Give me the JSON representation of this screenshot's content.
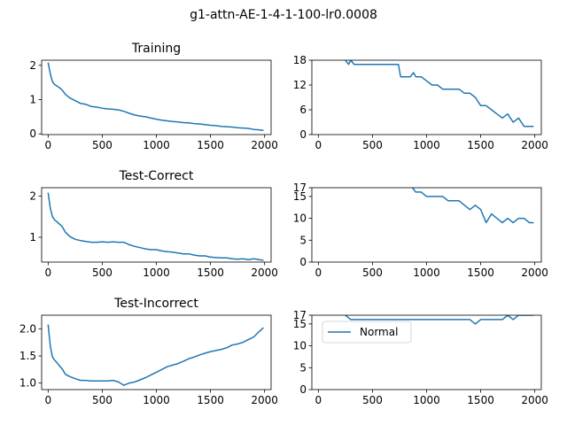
{
  "figure": {
    "title": "g1-attn-AE-1-4-1-100-lr0.0008"
  },
  "colors": {
    "series": "#1f77b4",
    "axis": "#000000",
    "background": "#ffffff"
  },
  "chart_data": [
    {
      "id": "training-loss",
      "type": "line",
      "title": "Training",
      "xlim": [
        -60,
        2060
      ],
      "ylim": [
        -0.02,
        2.15
      ],
      "xticks": [
        0,
        500,
        1000,
        1500,
        2000
      ],
      "xtick_labels": [
        "0",
        "500",
        "1000",
        "1500",
        "2000"
      ],
      "yticks": [
        0,
        1,
        2
      ],
      "ytick_labels": [
        "0",
        "1",
        "2"
      ],
      "series": [
        {
          "x": [
            0,
            20,
            40,
            60,
            80,
            100,
            130,
            160,
            200,
            250,
            300,
            350,
            400,
            450,
            500,
            550,
            600,
            650,
            700,
            750,
            800,
            850,
            900,
            950,
            1000,
            1050,
            1100,
            1150,
            1200,
            1250,
            1300,
            1350,
            1400,
            1450,
            1500,
            1550,
            1600,
            1650,
            1700,
            1750,
            1800,
            1850,
            1900,
            1950,
            1990
          ],
          "y": [
            2.08,
            1.75,
            1.52,
            1.44,
            1.4,
            1.36,
            1.28,
            1.15,
            1.05,
            0.97,
            0.89,
            0.86,
            0.8,
            0.78,
            0.75,
            0.73,
            0.72,
            0.7,
            0.66,
            0.6,
            0.55,
            0.52,
            0.5,
            0.46,
            0.43,
            0.4,
            0.38,
            0.36,
            0.35,
            0.33,
            0.32,
            0.3,
            0.29,
            0.27,
            0.25,
            0.24,
            0.22,
            0.21,
            0.2,
            0.18,
            0.17,
            0.16,
            0.13,
            0.12,
            0.1
          ]
        }
      ]
    },
    {
      "id": "training-count",
      "type": "line",
      "title": "",
      "xlim": [
        -60,
        2060
      ],
      "ylim": [
        0,
        18
      ],
      "xticks": [
        0,
        500,
        1000,
        1500,
        2000
      ],
      "xtick_labels": [
        "0",
        "500",
        "1000",
        "1500",
        "2000"
      ],
      "yticks": [
        0,
        6,
        12,
        18
      ],
      "ytick_labels": [
        "0",
        "6",
        "12",
        "18"
      ],
      "series": [
        {
          "x": [
            250,
            280,
            300,
            330,
            350,
            400,
            450,
            500,
            550,
            600,
            650,
            700,
            740,
            760,
            800,
            850,
            880,
            900,
            950,
            1000,
            1050,
            1100,
            1150,
            1200,
            1250,
            1300,
            1350,
            1400,
            1450,
            1500,
            1550,
            1600,
            1650,
            1700,
            1750,
            1800,
            1850,
            1900,
            1950,
            1990
          ],
          "y": [
            18,
            17,
            18,
            17,
            17,
            17,
            17,
            17,
            17,
            17,
            17,
            17,
            17,
            14,
            14,
            14,
            15,
            14,
            14,
            13,
            12,
            12,
            11,
            11,
            11,
            11,
            10,
            10,
            9,
            7,
            7,
            6,
            5,
            4,
            5,
            3,
            4,
            2,
            2,
            2
          ]
        }
      ]
    },
    {
      "id": "test-correct-loss",
      "type": "line",
      "title": "Test-Correct",
      "xlim": [
        -60,
        2060
      ],
      "ylim": [
        0.4,
        2.2
      ],
      "xticks": [
        0,
        500,
        1000,
        1500,
        2000
      ],
      "xtick_labels": [
        "0",
        "500",
        "1000",
        "1500",
        "2000"
      ],
      "yticks": [
        1,
        2
      ],
      "ytick_labels": [
        "1",
        "2"
      ],
      "series": [
        {
          "x": [
            0,
            20,
            40,
            60,
            80,
            100,
            130,
            160,
            200,
            250,
            300,
            350,
            400,
            450,
            500,
            550,
            600,
            650,
            700,
            750,
            800,
            850,
            900,
            950,
            1000,
            1050,
            1100,
            1150,
            1200,
            1250,
            1300,
            1350,
            1400,
            1450,
            1500,
            1550,
            1600,
            1650,
            1700,
            1750,
            1800,
            1850,
            1900,
            1950,
            1990
          ],
          "y": [
            2.08,
            1.7,
            1.5,
            1.42,
            1.38,
            1.33,
            1.26,
            1.12,
            1.02,
            0.95,
            0.92,
            0.9,
            0.88,
            0.88,
            0.89,
            0.88,
            0.89,
            0.88,
            0.88,
            0.82,
            0.78,
            0.75,
            0.72,
            0.7,
            0.7,
            0.67,
            0.65,
            0.64,
            0.62,
            0.6,
            0.6,
            0.57,
            0.55,
            0.55,
            0.52,
            0.51,
            0.5,
            0.5,
            0.48,
            0.47,
            0.48,
            0.46,
            0.48,
            0.46,
            0.44
          ]
        }
      ]
    },
    {
      "id": "test-correct-count",
      "type": "line",
      "title": "",
      "xlim": [
        -60,
        2060
      ],
      "ylim": [
        0,
        17
      ],
      "xticks": [
        0,
        500,
        1000,
        1500,
        2000
      ],
      "xtick_labels": [
        "0",
        "500",
        "1000",
        "1500",
        "2000"
      ],
      "yticks": [
        0,
        5,
        10,
        15,
        17
      ],
      "ytick_labels": [
        "0",
        "5",
        "10",
        "15",
        "17"
      ],
      "series": [
        {
          "x": [
            870,
            900,
            950,
            1000,
            1050,
            1100,
            1150,
            1200,
            1250,
            1300,
            1350,
            1400,
            1450,
            1500,
            1550,
            1600,
            1650,
            1700,
            1750,
            1800,
            1850,
            1900,
            1950,
            1990
          ],
          "y": [
            17,
            16,
            16,
            15,
            15,
            15,
            15,
            14,
            14,
            14,
            13,
            12,
            13,
            12,
            9,
            11,
            10,
            9,
            10,
            9,
            10,
            10,
            9,
            9
          ]
        }
      ]
    },
    {
      "id": "test-incorrect-loss",
      "type": "line",
      "title": "Test-Incorrect",
      "xlim": [
        -60,
        2060
      ],
      "ylim": [
        0.88,
        2.25
      ],
      "xticks": [
        0,
        500,
        1000,
        1500,
        2000
      ],
      "xtick_labels": [
        "0",
        "500",
        "1000",
        "1500",
        "2000"
      ],
      "yticks": [
        1.0,
        1.5,
        2.0
      ],
      "ytick_labels": [
        "1.0",
        "1.5",
        "2.0"
      ],
      "series": [
        {
          "x": [
            0,
            20,
            40,
            60,
            80,
            100,
            130,
            160,
            200,
            250,
            300,
            350,
            400,
            450,
            500,
            550,
            600,
            650,
            700,
            750,
            800,
            850,
            900,
            950,
            1000,
            1050,
            1100,
            1150,
            1200,
            1250,
            1300,
            1350,
            1400,
            1450,
            1500,
            1550,
            1600,
            1650,
            1700,
            1750,
            1800,
            1850,
            1900,
            1950,
            1990
          ],
          "y": [
            2.08,
            1.68,
            1.48,
            1.42,
            1.38,
            1.33,
            1.26,
            1.16,
            1.12,
            1.08,
            1.05,
            1.05,
            1.04,
            1.04,
            1.04,
            1.04,
            1.05,
            1.02,
            0.96,
            1.0,
            1.02,
            1.06,
            1.1,
            1.15,
            1.2,
            1.25,
            1.3,
            1.33,
            1.36,
            1.4,
            1.45,
            1.48,
            1.52,
            1.55,
            1.58,
            1.6,
            1.62,
            1.65,
            1.7,
            1.72,
            1.75,
            1.8,
            1.85,
            1.95,
            2.02
          ]
        }
      ]
    },
    {
      "id": "test-incorrect-count",
      "type": "line",
      "title": "",
      "xlim": [
        -60,
        2060
      ],
      "ylim": [
        0,
        17
      ],
      "xticks": [
        0,
        500,
        1000,
        1500,
        2000
      ],
      "xtick_labels": [
        "0",
        "500",
        "1000",
        "1500",
        "2000"
      ],
      "yticks": [
        0,
        5,
        10,
        15,
        17
      ],
      "ytick_labels": [
        "0",
        "5",
        "10",
        "15",
        "17"
      ],
      "legend": {
        "labels": [
          "Normal"
        ],
        "location": "upper-left"
      },
      "series": [
        {
          "name": "Normal",
          "x": [
            250,
            300,
            400,
            500,
            600,
            700,
            800,
            900,
            1000,
            1100,
            1200,
            1300,
            1400,
            1450,
            1500,
            1550,
            1600,
            1650,
            1700,
            1750,
            1800,
            1850,
            1900,
            1950,
            1990
          ],
          "y": [
            17,
            16,
            16,
            16,
            16,
            16,
            16,
            16,
            16,
            16,
            16,
            16,
            16,
            15,
            16,
            16,
            16,
            16,
            16,
            17,
            16,
            17,
            17,
            17,
            17
          ]
        }
      ]
    }
  ]
}
